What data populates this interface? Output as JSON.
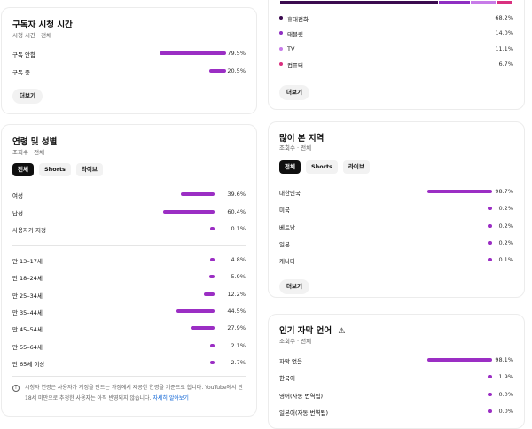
{
  "subscriber_watch": {
    "title": "구독자 시청 시간",
    "subtitle": "시청 시간 · 전체",
    "rows": [
      {
        "label": "구독 안함",
        "value": 79.5,
        "display": "79.5%"
      },
      {
        "label": "구독 중",
        "value": 20.5,
        "display": "20.5%"
      }
    ],
    "more_label": "더보기"
  },
  "age_gender": {
    "title": "연령 및 성별",
    "subtitle": "조회수 · 전체",
    "tabs": [
      "전체",
      "Shorts",
      "라이브"
    ],
    "active_tab": "전체",
    "gender_rows": [
      {
        "label": "여성",
        "value": 39.6,
        "display": "39.6%"
      },
      {
        "label": "남성",
        "value": 60.4,
        "display": "60.4%"
      },
      {
        "label": "사용자가 지정",
        "value": 0.1,
        "display": "0.1%"
      }
    ],
    "age_rows": [
      {
        "label": "만 13–17세",
        "value": 4.8,
        "display": "4.8%"
      },
      {
        "label": "만 18–24세",
        "value": 5.9,
        "display": "5.9%"
      },
      {
        "label": "만 25–34세",
        "value": 12.2,
        "display": "12.2%"
      },
      {
        "label": "만 35–44세",
        "value": 44.5,
        "display": "44.5%"
      },
      {
        "label": "만 45–54세",
        "value": 27.9,
        "display": "27.9%"
      },
      {
        "label": "만 55–64세",
        "value": 2.1,
        "display": "2.1%"
      },
      {
        "label": "만 65세 이상",
        "value": 2.7,
        "display": "2.7%"
      }
    ],
    "info_text": "시청자 연령은 사용자가 계정을 만드는 과정에서 제공한 연령을 기준으로 합니다. YouTube에서 만 18세 미만으로 추정한 사용자는 아직 반영되지 않습니다.",
    "info_link": "자세히 알아보기"
  },
  "device": {
    "rows": [
      {
        "label": "휴대전화",
        "value": 68.2,
        "display": "68.2%",
        "color": "#3b0a4f"
      },
      {
        "label": "태블릿",
        "value": 14.0,
        "display": "14.0%",
        "color": "#8f2fc2"
      },
      {
        "label": "TV",
        "value": 11.1,
        "display": "11.1%",
        "color": "#c77be8"
      },
      {
        "label": "컴퓨터",
        "value": 6.7,
        "display": "6.7%",
        "color": "#d9307f"
      }
    ],
    "more_label": "더보기"
  },
  "regions": {
    "title": "많이 본 지역",
    "subtitle": "조회수 · 전체",
    "tabs": [
      "전체",
      "Shorts",
      "라이브"
    ],
    "active_tab": "전체",
    "rows": [
      {
        "label": "대한민국",
        "value": 98.7,
        "display": "98.7%"
      },
      {
        "label": "미국",
        "value": 0.2,
        "display": "0.2%"
      },
      {
        "label": "베트남",
        "value": 0.2,
        "display": "0.2%"
      },
      {
        "label": "일본",
        "value": 0.2,
        "display": "0.2%"
      },
      {
        "label": "캐나다",
        "value": 0.1,
        "display": "0.1%"
      }
    ],
    "more_label": "더보기"
  },
  "subtitles": {
    "title": "인기 자막 언어",
    "warning_icon": "warning-icon",
    "subtitle": "조회수 · 전체",
    "rows": [
      {
        "label": "자막 없음",
        "value": 98.1,
        "display": "98.1%"
      },
      {
        "label": "한국어",
        "value": 1.9,
        "display": "1.9%"
      },
      {
        "label": "영어(자동 번역됨)",
        "value": 0.0,
        "display": "0.0%"
      },
      {
        "label": "일본어(자동 번역됨)",
        "value": 0.0,
        "display": "0.0%"
      }
    ]
  },
  "colors": {
    "bar": "#9b2ec4",
    "link": "#065fd4"
  }
}
